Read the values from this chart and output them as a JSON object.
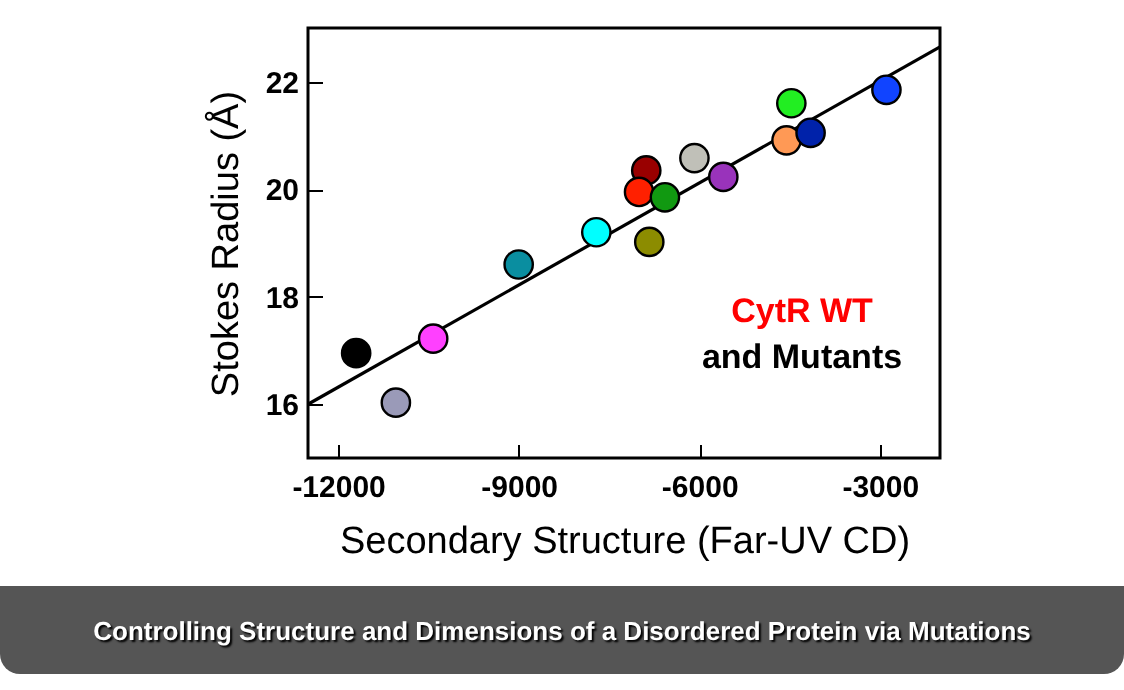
{
  "chart_data": {
    "type": "scatter",
    "title": "Controlling Structure and Dimensions of a Disordered Protein via Mutations",
    "xlabel": "Secondary Structure (Far-UV CD)",
    "ylabel": "Stokes Radius (Å)",
    "annotations": [
      "CytR WT",
      "and Mutants"
    ],
    "xlim": [
      -12500,
      -2000
    ],
    "xticks": [
      -12000,
      -9000,
      -6000,
      -3000
    ],
    "ylim": [
      15,
      23
    ],
    "yticks": [
      16,
      18,
      20,
      22
    ],
    "grid": false,
    "series": [
      {
        "marker": "circle",
        "x": [
          -11700,
          -11040,
          -10420,
          -9000,
          -7710,
          -6880,
          -7000,
          -6570,
          -6830,
          -6080,
          -5600,
          -4470,
          -4550,
          -4150,
          -2890
        ],
        "values": [
          16.95,
          16.03,
          17.22,
          18.6,
          19.2,
          20.35,
          19.95,
          19.85,
          19.02,
          20.58,
          20.23,
          21.6,
          20.91,
          21.05,
          21.85
        ],
        "colors": [
          "#000000",
          "#9a9ab8",
          "#ff40ff",
          "#0a8ea0",
          "#00ffff",
          "#990000",
          "#ff2000",
          "#119911",
          "#8c8c00",
          "#c0c0b8",
          "#9933bb",
          "#22ee22",
          "#ff9955",
          "#0022aa",
          "#1144ff"
        ]
      },
      {
        "type": "line",
        "marker": "none",
        "color": "#000000",
        "x": [
          -12500,
          -2000
        ],
        "values": [
          16.0,
          22.65
        ]
      }
    ]
  }
}
